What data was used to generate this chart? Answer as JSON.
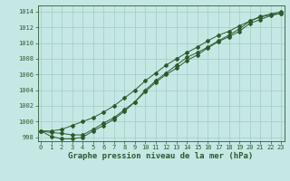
{
  "title": "Graphe pression niveau de la mer (hPa)",
  "background_color": "#c5e8e5",
  "grid_color": "#a8d0cc",
  "line_color": "#2d5a2d",
  "x_values": [
    0,
    1,
    2,
    3,
    4,
    5,
    6,
    7,
    8,
    9,
    10,
    11,
    12,
    13,
    14,
    15,
    16,
    17,
    18,
    19,
    20,
    21,
    22,
    23
  ],
  "y_line1": [
    998.8,
    998.6,
    998.5,
    998.3,
    998.3,
    999.0,
    999.8,
    1000.5,
    1001.5,
    1002.5,
    1004.0,
    1005.2,
    1006.2,
    1007.2,
    1008.2,
    1008.8,
    1009.5,
    1010.3,
    1011.0,
    1011.8,
    1012.8,
    1013.3,
    1013.6,
    1013.8
  ],
  "y_line2": [
    998.8,
    998.8,
    999.0,
    999.5,
    1000.0,
    1000.5,
    1001.2,
    1002.0,
    1003.0,
    1004.0,
    1005.2,
    1006.2,
    1007.2,
    1008.0,
    1008.8,
    1009.5,
    1010.3,
    1011.0,
    1011.5,
    1012.2,
    1012.8,
    1013.4,
    1013.7,
    1014.0
  ],
  "y_line3": [
    998.8,
    998.1,
    997.8,
    997.8,
    998.0,
    998.8,
    999.5,
    1000.3,
    1001.3,
    1002.5,
    1003.8,
    1005.0,
    1006.0,
    1006.8,
    1007.8,
    1008.5,
    1009.4,
    1010.2,
    1010.8,
    1011.5,
    1012.5,
    1013.0,
    1013.5,
    1013.8
  ],
  "ylim": [
    997.5,
    1014.8
  ],
  "yticks": [
    998,
    1000,
    1002,
    1004,
    1006,
    1008,
    1010,
    1012,
    1014
  ],
  "xlim": [
    -0.3,
    23.3
  ],
  "xticks": [
    0,
    1,
    2,
    3,
    4,
    5,
    6,
    7,
    8,
    9,
    10,
    11,
    12,
    13,
    14,
    15,
    16,
    17,
    18,
    19,
    20,
    21,
    22,
    23
  ],
  "tick_fontsize": 5.0,
  "title_fontsize": 6.5,
  "linewidth": 0.7,
  "markersize": 2.0
}
